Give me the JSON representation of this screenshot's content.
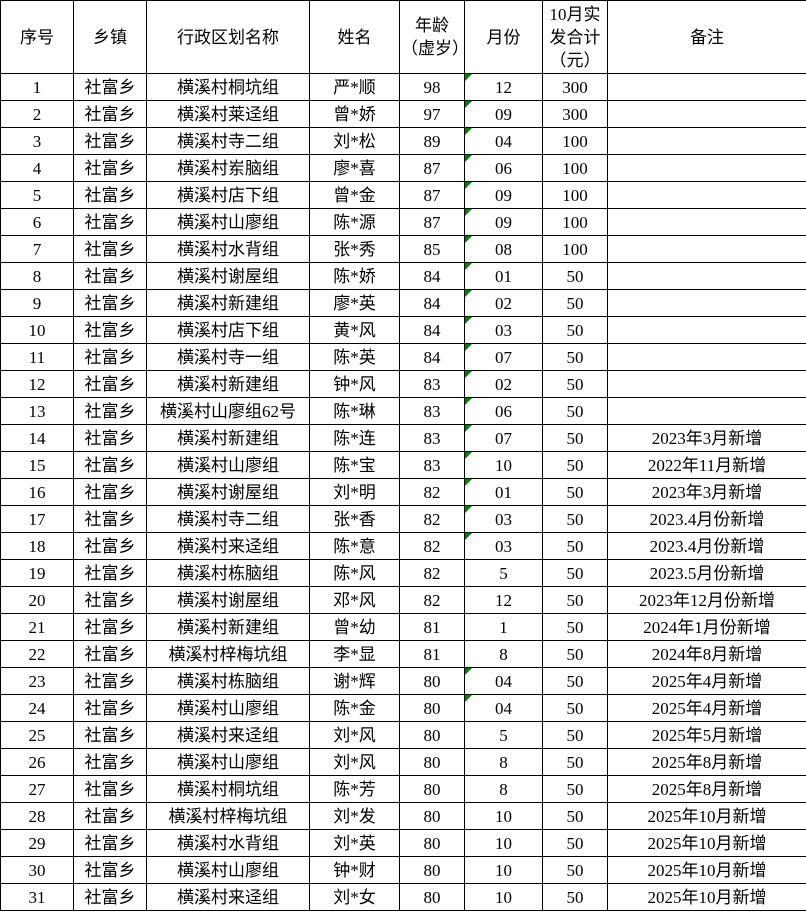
{
  "sheet": {
    "columns": [
      {
        "key": "serial",
        "label": "序号"
      },
      {
        "key": "township",
        "label": "乡镇"
      },
      {
        "key": "division",
        "label": "行政区划名称"
      },
      {
        "key": "name",
        "label": "姓名"
      },
      {
        "key": "age",
        "label": "年龄（虚岁）"
      },
      {
        "key": "month",
        "label": "月份"
      },
      {
        "key": "amount",
        "label": "10月实发合计（元）"
      },
      {
        "key": "remark",
        "label": "备注"
      }
    ],
    "rows": [
      {
        "cells": [
          "1",
          "社富乡",
          "横溪村桐坑组",
          "严*顺",
          "98",
          "12",
          "300",
          ""
        ],
        "month_flag": true
      },
      {
        "cells": [
          "2",
          "社富乡",
          "横溪村莱迳组",
          "曾*娇",
          "97",
          "09",
          "300",
          ""
        ],
        "month_flag": true
      },
      {
        "cells": [
          "3",
          "社富乡",
          "横溪村寺二组",
          "刘*松",
          "89",
          "04",
          "100",
          ""
        ],
        "month_flag": true
      },
      {
        "cells": [
          "4",
          "社富乡",
          "横溪村岽脑组",
          "廖*喜",
          "87",
          "06",
          "100",
          ""
        ],
        "month_flag": true
      },
      {
        "cells": [
          "5",
          "社富乡",
          "横溪村店下组",
          "曾*金",
          "87",
          "09",
          "100",
          ""
        ],
        "month_flag": true
      },
      {
        "cells": [
          "6",
          "社富乡",
          "横溪村山廖组",
          "陈*源",
          "87",
          "09",
          "100",
          ""
        ],
        "month_flag": true
      },
      {
        "cells": [
          "7",
          "社富乡",
          "横溪村水背组",
          "张*秀",
          "85",
          "08",
          "100",
          ""
        ],
        "month_flag": true
      },
      {
        "cells": [
          "8",
          "社富乡",
          "横溪村谢屋组",
          "陈*娇",
          "84",
          "01",
          "50",
          ""
        ],
        "month_flag": true
      },
      {
        "cells": [
          "9",
          "社富乡",
          "横溪村新建组",
          "廖*英",
          "84",
          "02",
          "50",
          ""
        ],
        "month_flag": true
      },
      {
        "cells": [
          "10",
          "社富乡",
          "横溪村店下组",
          "黄*风",
          "84",
          "03",
          "50",
          ""
        ],
        "month_flag": true
      },
      {
        "cells": [
          "11",
          "社富乡",
          "横溪村寺一组",
          "陈*英",
          "84",
          "07",
          "50",
          ""
        ],
        "month_flag": true
      },
      {
        "cells": [
          "12",
          "社富乡",
          "横溪村新建组",
          "钟*风",
          "83",
          "02",
          "50",
          ""
        ],
        "month_flag": true
      },
      {
        "cells": [
          "13",
          "社富乡",
          "横溪村山廖组62号",
          "陈*琳",
          "83",
          "06",
          "50",
          ""
        ],
        "month_flag": true
      },
      {
        "cells": [
          "14",
          "社富乡",
          "横溪村新建组",
          "陈*连",
          "83",
          "07",
          "50",
          "2023年3月新增"
        ],
        "month_flag": true
      },
      {
        "cells": [
          "15",
          "社富乡",
          "横溪村山廖组",
          "陈*宝",
          "83",
          "10",
          "50",
          "2022年11月新增"
        ],
        "month_flag": true
      },
      {
        "cells": [
          "16",
          "社富乡",
          "横溪村谢屋组",
          "刘*明",
          "82",
          "01",
          "50",
          "2023年3月新增"
        ],
        "month_flag": true
      },
      {
        "cells": [
          "17",
          "社富乡",
          "横溪村寺二组",
          "张*香",
          "82",
          "03",
          "50",
          "2023.4月份新增"
        ],
        "month_flag": true
      },
      {
        "cells": [
          "18",
          "社富乡",
          "横溪村来迳组",
          "陈*意",
          "82",
          "03",
          "50",
          "2023.4月份新增"
        ],
        "month_flag": true
      },
      {
        "cells": [
          "19",
          "社富乡",
          "横溪村栋脑组",
          "陈*风",
          "82",
          "5",
          "50",
          "2023.5月份新增"
        ],
        "month_flag": false
      },
      {
        "cells": [
          "20",
          "社富乡",
          "横溪村谢屋组",
          "邓*风",
          "82",
          "12",
          "50",
          "2023年12月份新增"
        ],
        "month_flag": false
      },
      {
        "cells": [
          "21",
          "社富乡",
          "横溪村新建组",
          "曾*幼",
          "81",
          "1",
          "50",
          "2024年1月份新增"
        ],
        "month_flag": false
      },
      {
        "cells": [
          "22",
          "社富乡",
          "横溪村梓梅坑组",
          "李*显",
          "81",
          "8",
          "50",
          "2024年8月新增"
        ],
        "month_flag": false
      },
      {
        "cells": [
          "23",
          "社富乡",
          "横溪村栋脑组",
          "谢*辉",
          "80",
          "04",
          "50",
          "2025年4月新增"
        ],
        "month_flag": true
      },
      {
        "cells": [
          "24",
          "社富乡",
          "横溪村山廖组",
          "陈*金",
          "80",
          "04",
          "50",
          "2025年4月新增"
        ],
        "month_flag": true
      },
      {
        "cells": [
          "25",
          "社富乡",
          "横溪村来迳组",
          "刘*风",
          "80",
          "5",
          "50",
          "2025年5月新增"
        ],
        "month_flag": false
      },
      {
        "cells": [
          "26",
          "社富乡",
          "横溪村山廖组",
          "刘*风",
          "80",
          "8",
          "50",
          "2025年8月新增"
        ],
        "month_flag": false
      },
      {
        "cells": [
          "27",
          "社富乡",
          "横溪村桐坑组",
          "陈*芳",
          "80",
          "8",
          "50",
          "2025年8月新增"
        ],
        "month_flag": false
      },
      {
        "cells": [
          "28",
          "社富乡",
          "横溪村梓梅坑组",
          "刘*发",
          "80",
          "10",
          "50",
          "2025年10月新增"
        ],
        "month_flag": false
      },
      {
        "cells": [
          "29",
          "社富乡",
          "横溪村水背组",
          "刘*英",
          "80",
          "10",
          "50",
          "2025年10月新增"
        ],
        "month_flag": false
      },
      {
        "cells": [
          "30",
          "社富乡",
          "横溪村山廖组",
          "钟*财",
          "80",
          "10",
          "50",
          "2025年10月新增"
        ],
        "month_flag": false
      },
      {
        "cells": [
          "31",
          "社富乡",
          "横溪村来迳组",
          "刘*女",
          "80",
          "10",
          "50",
          "2025年10月新增"
        ],
        "month_flag": false
      }
    ]
  },
  "icons": {
    "month_flag": "cell-error-indicator-triangle"
  },
  "colors": {
    "error_indicator": "#008000",
    "grid_border": "#000000",
    "text": "#000000",
    "background": "#ffffff"
  }
}
